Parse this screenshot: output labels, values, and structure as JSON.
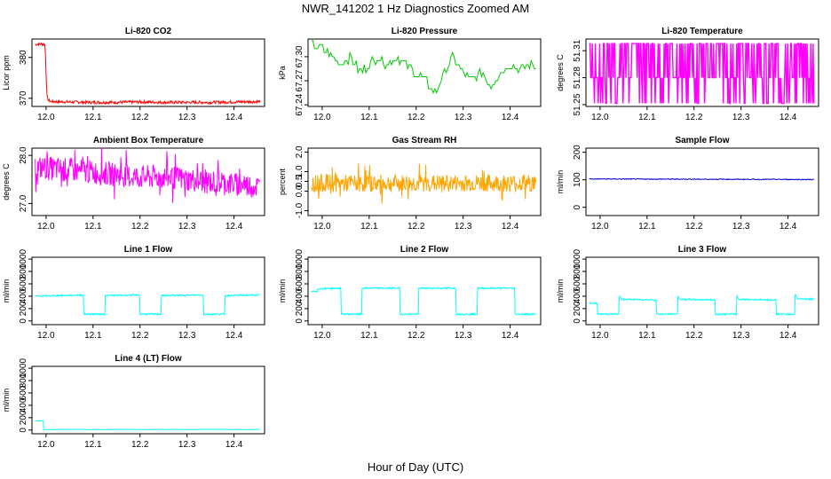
{
  "figure": {
    "title": "NWR_141202  1 Hz Diagnostics Zoomed AM",
    "xlabel": "Hour of Day (UTC)"
  },
  "chart_data": [
    {
      "type": "line",
      "title": "Li-820 CO2",
      "ylabel": "Licor ppm",
      "color": "#ff0000",
      "xlim": [
        11.97,
        12.465
      ],
      "ylim": [
        368,
        384.5
      ],
      "xticks": [
        12.0,
        12.1,
        12.2,
        12.3,
        12.4
      ],
      "xtick_labels": [
        "12.0",
        "12.1",
        "12.2",
        "12.3",
        "12.4"
      ],
      "yticks": [
        370,
        380
      ],
      "ytick_labels": [
        "370",
        "380"
      ],
      "x": [
        11.977,
        11.99,
        11.996,
        11.998,
        12.0,
        12.002,
        12.005,
        12.01,
        12.05,
        12.1,
        12.15,
        12.2,
        12.25,
        12.3,
        12.35,
        12.4,
        12.455
      ],
      "y": [
        383.2,
        383.3,
        383.2,
        383.0,
        376.0,
        370.4,
        369.5,
        369.2,
        369.1,
        369.0,
        369.0,
        369.1,
        369.0,
        369.0,
        369.0,
        369.1,
        369.2
      ]
    },
    {
      "type": "line",
      "title": "Li-820 Pressure",
      "ylabel": "kPa",
      "color": "#00cc00",
      "xlim": [
        11.97,
        12.465
      ],
      "ylim": [
        67.238,
        67.322
      ],
      "xticks": [
        12.0,
        12.1,
        12.2,
        12.3,
        12.4
      ],
      "xtick_labels": [
        "12.0",
        "12.1",
        "12.2",
        "12.3",
        "12.4"
      ],
      "yticks": [
        67.24,
        67.27,
        67.3
      ],
      "ytick_labels": [
        "67.24",
        "67.27",
        "67.30"
      ],
      "x": [
        11.977,
        12.0,
        12.02,
        12.04,
        12.06,
        12.08,
        12.1,
        12.12,
        12.14,
        12.16,
        12.18,
        12.2,
        12.22,
        12.24,
        12.26,
        12.28,
        12.3,
        12.32,
        12.34,
        12.36,
        12.38,
        12.4,
        12.42,
        12.44,
        12.455
      ],
      "y": [
        67.315,
        67.31,
        67.3,
        67.29,
        67.3,
        67.28,
        67.29,
        67.3,
        67.29,
        67.3,
        67.29,
        67.28,
        67.27,
        67.255,
        67.28,
        67.3,
        67.28,
        67.27,
        67.28,
        67.265,
        67.28,
        67.29,
        67.285,
        67.29,
        67.285
      ]
    },
    {
      "type": "line",
      "title": "Li-820 Temperature",
      "ylabel": "degrees C",
      "color": "#ff00ff",
      "xlim": [
        11.97,
        12.465
      ],
      "ylim": [
        51.248,
        51.323
      ],
      "xticks": [
        12.0,
        12.1,
        12.2,
        12.3,
        12.4
      ],
      "xtick_labels": [
        "12.0",
        "12.1",
        "12.2",
        "12.3",
        "12.4"
      ],
      "yticks": [
        51.25,
        51.28,
        51.31
      ],
      "ytick_labels": [
        "51.25",
        "51.28",
        "51.31"
      ],
      "x": [
        11.977,
        12.455
      ],
      "y": [
        51.25,
        51.32
      ]
    },
    {
      "type": "line",
      "title": "Ambient Box Temperature",
      "ylabel": "degrees C",
      "color": "#ff00ff",
      "xlim": [
        11.97,
        12.465
      ],
      "ylim": [
        26.75,
        28.15
      ],
      "xticks": [
        12.0,
        12.1,
        12.2,
        12.3,
        12.4
      ],
      "xtick_labels": [
        "12.0",
        "12.1",
        "12.2",
        "12.3",
        "12.4"
      ],
      "yticks": [
        27.0,
        28.0
      ],
      "ytick_labels": [
        "27.0",
        "28.0"
      ],
      "x": [
        11.977,
        12.05,
        12.1,
        12.15,
        12.2,
        12.25,
        12.3,
        12.35,
        12.4,
        12.455
      ],
      "y": [
        27.75,
        27.7,
        27.65,
        27.6,
        27.55,
        27.55,
        27.5,
        27.45,
        27.4,
        27.35
      ]
    },
    {
      "type": "line",
      "title": "Gas Stream RH",
      "ylabel": "percent",
      "color": "#ffa500",
      "xlim": [
        11.97,
        12.465
      ],
      "ylim": [
        -1.25,
        2.2
      ],
      "xticks": [
        12.0,
        12.1,
        12.2,
        12.3,
        12.4
      ],
      "xtick_labels": [
        "12.0",
        "12.1",
        "12.2",
        "12.3",
        "12.4"
      ],
      "yticks": [
        -1.0,
        0.0,
        0.5,
        1.0,
        2.0
      ],
      "ytick_labels": [
        "-1.0",
        "0.0",
        "0.5",
        "1.0",
        "2.0"
      ],
      "x": [
        11.977,
        12.455
      ],
      "y": [
        0.4,
        0.4
      ]
    },
    {
      "type": "line",
      "title": "Sample Flow",
      "ylabel": "ml/min",
      "color": "#0000cd",
      "xlim": [
        11.97,
        12.465
      ],
      "ylim": [
        -30,
        215
      ],
      "xticks": [
        12.0,
        12.1,
        12.2,
        12.3,
        12.4
      ],
      "xtick_labels": [
        "12.0",
        "12.1",
        "12.2",
        "12.3",
        "12.4"
      ],
      "yticks": [
        0,
        100,
        200
      ],
      "ytick_labels": [
        "0",
        "100",
        "200"
      ],
      "x": [
        11.977,
        12.455
      ],
      "y": [
        103,
        101
      ]
    },
    {
      "type": "line",
      "title": "Line 1 Flow",
      "ylabel": "ml/min",
      "color": "#00ffff",
      "xlim": [
        11.97,
        12.465
      ],
      "ylim": [
        -60,
        1030
      ],
      "xticks": [
        12.0,
        12.1,
        12.2,
        12.3,
        12.4
      ],
      "xtick_labels": [
        "12.0",
        "12.1",
        "12.2",
        "12.3",
        "12.4"
      ],
      "yticks": [
        0,
        200,
        400,
        600,
        800,
        1000
      ],
      "ytick_labels": [
        "0",
        "200",
        "400",
        "600",
        "800",
        "1000"
      ],
      "x": [
        11.977,
        12.08,
        12.08,
        12.125,
        12.125,
        12.2,
        12.2,
        12.245,
        12.245,
        12.335,
        12.335,
        12.38,
        12.38,
        12.455,
        12.455
      ],
      "y": [
        400,
        420,
        110,
        110,
        410,
        420,
        110,
        110,
        410,
        420,
        110,
        110,
        410,
        420,
        110
      ]
    },
    {
      "type": "line",
      "title": "Line 2 Flow",
      "ylabel": "ml/min",
      "color": "#00ffff",
      "xlim": [
        11.97,
        12.465
      ],
      "ylim": [
        -60,
        1030
      ],
      "xticks": [
        12.0,
        12.1,
        12.2,
        12.3,
        12.4
      ],
      "xtick_labels": [
        "12.0",
        "12.1",
        "12.2",
        "12.3",
        "12.4"
      ],
      "yticks": [
        0,
        200,
        400,
        600,
        800,
        1000
      ],
      "ytick_labels": [
        "0",
        "200",
        "400",
        "600",
        "800",
        "1000"
      ],
      "x": [
        11.977,
        11.99,
        11.99,
        12.04,
        12.04,
        12.085,
        12.085,
        12.165,
        12.165,
        12.205,
        12.205,
        12.285,
        12.285,
        12.33,
        12.33,
        12.41,
        12.41,
        12.455,
        12.455
      ],
      "y": [
        480,
        470,
        520,
        530,
        110,
        110,
        530,
        530,
        110,
        110,
        530,
        530,
        110,
        110,
        530,
        530,
        110,
        110,
        500
      ]
    },
    {
      "type": "line",
      "title": "Line 3 Flow",
      "ylabel": "ml/min",
      "color": "#00ffff",
      "xlim": [
        11.97,
        12.465
      ],
      "ylim": [
        -60,
        1030
      ],
      "xticks": [
        12.0,
        12.1,
        12.2,
        12.3,
        12.4
      ],
      "xtick_labels": [
        "12.0",
        "12.1",
        "12.2",
        "12.3",
        "12.4"
      ],
      "yticks": [
        0,
        200,
        400,
        600,
        800,
        1000
      ],
      "ytick_labels": [
        "0",
        "200",
        "400",
        "600",
        "800",
        "1000"
      ],
      "x": [
        11.977,
        11.995,
        11.995,
        12.04,
        12.04,
        12.045,
        12.12,
        12.12,
        12.165,
        12.165,
        12.17,
        12.245,
        12.245,
        12.29,
        12.29,
        12.295,
        12.375,
        12.375,
        12.415,
        12.415,
        12.42,
        12.455
      ],
      "y": [
        290,
        280,
        110,
        110,
        420,
        350,
        340,
        110,
        110,
        420,
        350,
        340,
        110,
        110,
        420,
        350,
        340,
        110,
        110,
        430,
        360,
        350
      ]
    },
    {
      "type": "line",
      "title": "Line 4 (LT) Flow",
      "ylabel": "ml/min",
      "color": "#00ffff",
      "xlim": [
        11.97,
        12.465
      ],
      "ylim": [
        -60,
        1030
      ],
      "xticks": [
        12.0,
        12.1,
        12.2,
        12.3,
        12.4
      ],
      "xtick_labels": [
        "12.0",
        "12.1",
        "12.2",
        "12.3",
        "12.4"
      ],
      "yticks": [
        0,
        200,
        400,
        600,
        800,
        1000
      ],
      "ytick_labels": [
        "0",
        "200",
        "400",
        "600",
        "800",
        "1000"
      ],
      "x": [
        11.977,
        11.995,
        11.995,
        12.455
      ],
      "y": [
        150,
        150,
        10,
        10
      ]
    }
  ]
}
